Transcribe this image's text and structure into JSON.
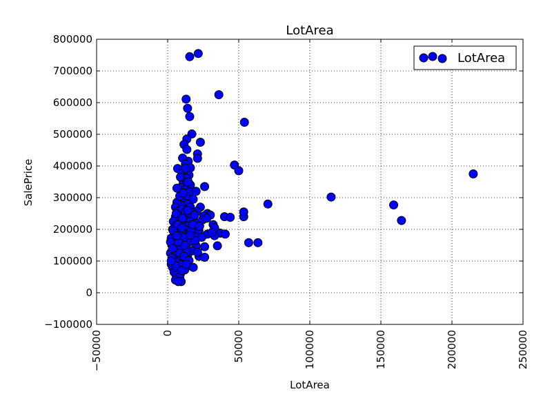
{
  "chart_data": {
    "type": "scatter",
    "title": "LotArea",
    "xlabel": "LotArea",
    "ylabel": "SalePrice",
    "xlim": [
      -50000,
      250000
    ],
    "ylim": [
      -100000,
      800000
    ],
    "xticks": [
      -50000,
      0,
      50000,
      100000,
      150000,
      200000,
      250000
    ],
    "yticks": [
      -100000,
      0,
      100000,
      200000,
      300000,
      400000,
      500000,
      600000,
      700000,
      800000
    ],
    "xtick_labels": [
      "−50000",
      "0",
      "50000",
      "100000",
      "150000",
      "200000",
      "250000"
    ],
    "ytick_labels": [
      "−100000",
      "0",
      "100000",
      "200000",
      "300000",
      "400000",
      "500000",
      "600000",
      "700000",
      "800000"
    ],
    "grid": true,
    "legend_position": "top-right",
    "marker_color": "#0000ff",
    "marker_edge_color": "#000000",
    "series": [
      {
        "name": "LotArea",
        "points": [
          [
            15500,
            745000
          ],
          [
            21500,
            755000
          ],
          [
            36000,
            625000
          ],
          [
            13000,
            611000
          ],
          [
            14000,
            582000
          ],
          [
            15500,
            556000
          ],
          [
            54000,
            538000
          ],
          [
            17000,
            501000
          ],
          [
            13500,
            485000
          ],
          [
            23000,
            475000
          ],
          [
            11500,
            468000
          ],
          [
            13500,
            452000
          ],
          [
            21000,
            438000
          ],
          [
            21000,
            424000
          ],
          [
            14500,
            415000
          ],
          [
            10500,
            425000
          ],
          [
            12500,
            406000
          ],
          [
            16000,
            394000
          ],
          [
            7000,
            392000
          ],
          [
            47000,
            403000
          ],
          [
            50000,
            385000
          ],
          [
            10000,
            378000
          ],
          [
            15000,
            371000
          ],
          [
            13000,
            362000
          ],
          [
            11000,
            350000
          ],
          [
            13500,
            345000
          ],
          [
            16000,
            340000
          ],
          [
            9000,
            332000
          ],
          [
            6500,
            330000
          ],
          [
            12500,
            325000
          ],
          [
            26000,
            335000
          ],
          [
            15500,
            318000
          ],
          [
            20000,
            320000
          ],
          [
            10500,
            300000
          ],
          [
            13000,
            305000
          ],
          [
            18000,
            295000
          ],
          [
            8000,
            290000
          ],
          [
            11500,
            283000
          ],
          [
            14000,
            280000
          ],
          [
            9500,
            275000
          ],
          [
            16000,
            270000
          ],
          [
            6500,
            285000
          ],
          [
            5500,
            270000
          ],
          [
            23000,
            270000
          ],
          [
            20500,
            257000
          ],
          [
            12000,
            262000
          ],
          [
            7500,
            258000
          ],
          [
            17000,
            252000
          ],
          [
            9000,
            248000
          ],
          [
            14500,
            245000
          ],
          [
            28000,
            250000
          ],
          [
            30000,
            245000
          ],
          [
            25500,
            242000
          ],
          [
            11000,
            240000
          ],
          [
            5500,
            240000
          ],
          [
            8000,
            232000
          ],
          [
            13000,
            228000
          ],
          [
            16000,
            225000
          ],
          [
            20500,
            220000
          ],
          [
            4000,
            225000
          ],
          [
            10000,
            218000
          ],
          [
            6000,
            212000
          ],
          [
            14000,
            210000
          ],
          [
            18000,
            208000
          ],
          [
            32000,
            215000
          ],
          [
            12000,
            200000
          ],
          [
            8000,
            198000
          ],
          [
            3500,
            200000
          ],
          [
            22000,
            195000
          ],
          [
            10500,
            190000
          ],
          [
            15500,
            188000
          ],
          [
            5000,
            185000
          ],
          [
            28000,
            185000
          ],
          [
            35000,
            190000
          ],
          [
            37000,
            188000
          ],
          [
            33000,
            180000
          ],
          [
            19000,
            178000
          ],
          [
            24000,
            175000
          ],
          [
            12000,
            172000
          ],
          [
            7000,
            170000
          ],
          [
            2500,
            172000
          ],
          [
            10000,
            165000
          ],
          [
            15000,
            160000
          ],
          [
            4500,
            155000
          ],
          [
            8000,
            152000
          ],
          [
            26000,
            145000
          ],
          [
            35000,
            148000
          ],
          [
            20000,
            148000
          ],
          [
            13000,
            145000
          ],
          [
            3000,
            150000
          ],
          [
            6000,
            140000
          ],
          [
            11000,
            135000
          ],
          [
            17000,
            132000
          ],
          [
            9000,
            128000
          ],
          [
            2000,
            125000
          ],
          [
            5000,
            120000
          ],
          [
            14000,
            118000
          ],
          [
            22000,
            115000
          ],
          [
            26000,
            112000
          ],
          [
            8000,
            110000
          ],
          [
            4000,
            105000
          ],
          [
            11000,
            100000
          ],
          [
            6500,
            95000
          ],
          [
            2500,
            90000
          ],
          [
            9500,
            88000
          ],
          [
            15000,
            85000
          ],
          [
            18000,
            80000
          ],
          [
            3500,
            80000
          ],
          [
            7000,
            75000
          ],
          [
            12000,
            72000
          ],
          [
            4500,
            65000
          ],
          [
            9000,
            60000
          ],
          [
            6000,
            55000
          ],
          [
            8500,
            50000
          ],
          [
            5500,
            40000
          ],
          [
            9500,
            35000
          ],
          [
            7500,
            35000
          ],
          [
            40000,
            240000
          ],
          [
            44000,
            238000
          ],
          [
            53500,
            240000
          ],
          [
            53500,
            255000
          ],
          [
            70500,
            280000
          ],
          [
            115000,
            302000
          ],
          [
            159000,
            277000
          ],
          [
            164500,
            228000
          ],
          [
            215000,
            375000
          ],
          [
            57000,
            158000
          ],
          [
            63500,
            158000
          ],
          [
            40500,
            185000
          ],
          [
            33000,
            205000
          ],
          [
            31000,
            190000
          ],
          [
            10000,
            265000
          ],
          [
            12500,
            255000
          ],
          [
            7000,
            215000
          ],
          [
            11500,
            175000
          ],
          [
            16500,
            195000
          ],
          [
            19500,
            165000
          ],
          [
            13500,
            130000
          ],
          [
            21000,
            128000
          ],
          [
            5000,
            130000
          ],
          [
            3000,
            110000
          ],
          [
            9500,
            145000
          ],
          [
            12000,
            150000
          ],
          [
            17500,
            215000
          ],
          [
            24500,
            230000
          ],
          [
            6000,
            250000
          ],
          [
            8500,
            305000
          ],
          [
            11000,
            315000
          ],
          [
            14500,
            350000
          ],
          [
            9000,
            365000
          ],
          [
            12500,
            392000
          ],
          [
            10500,
            235000
          ],
          [
            16000,
            182000
          ],
          [
            7500,
            160000
          ],
          [
            2000,
            160000
          ],
          [
            4000,
            195000
          ],
          [
            19000,
            245000
          ],
          [
            22500,
            210000
          ],
          [
            27500,
            235000
          ],
          [
            14000,
            260000
          ],
          [
            10000,
            205000
          ],
          [
            6500,
            180000
          ],
          [
            8500,
            125000
          ],
          [
            11500,
            115000
          ],
          [
            3500,
            140000
          ],
          [
            15000,
            102000
          ],
          [
            5500,
            85000
          ],
          [
            10000,
            70000
          ],
          [
            13000,
            90000
          ],
          [
            2500,
            100000
          ]
        ]
      }
    ]
  }
}
